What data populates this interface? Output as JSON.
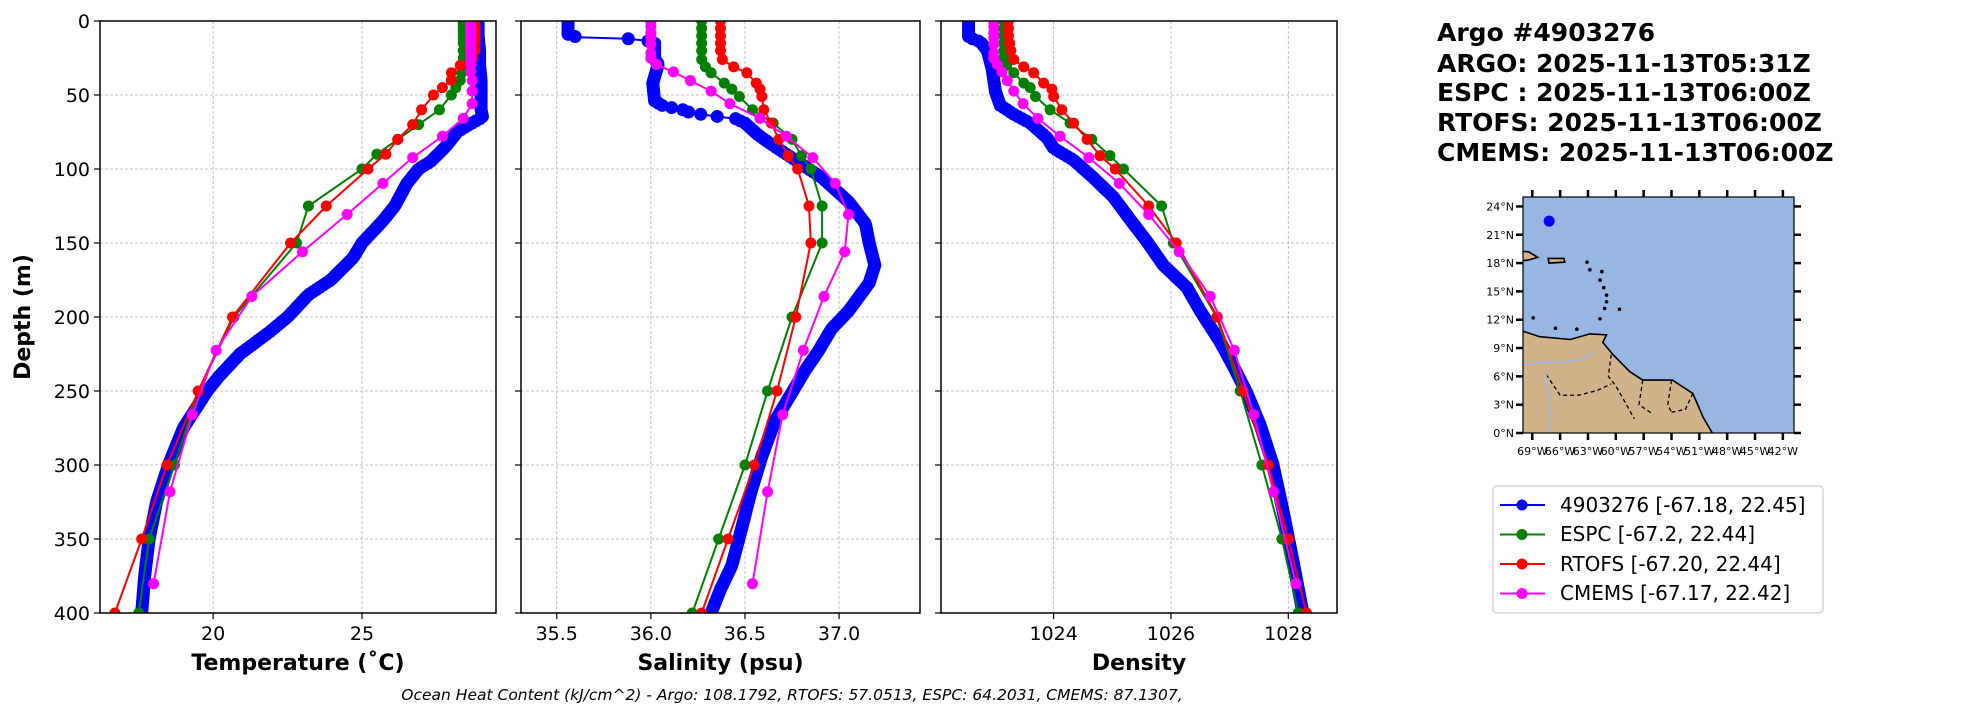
{
  "header": {
    "lines": [
      "Argo #4903276",
      "ARGO: 2025-11-13T05:31Z",
      "ESPC : 2025-11-13T06:00Z",
      "RTOFS: 2025-11-13T06:00Z",
      "CMEMS: 2025-11-13T06:00Z"
    ]
  },
  "legend": [
    {
      "label": "4903276 [-67.18, 22.45]",
      "color": "#0000ff"
    },
    {
      "label": "ESPC [-67.2, 22.44]",
      "color": "#008000"
    },
    {
      "label": "RTOFS [-67.20, 22.44]",
      "color": "#ff0000"
    },
    {
      "label": "CMEMS [-67.17, 22.42]",
      "color": "#ff00ff"
    }
  ],
  "footer": "Ocean Heat Content (kJ/cm^2) - Argo: 108.1792,  RTOFS: 57.0513,  ESPC: 64.2031,  CMEMS: 87.1307,",
  "map": {
    "lon_range": [
      -70,
      -40.8
    ],
    "lat_range": [
      0,
      25
    ],
    "ocean_color": "#97b6e1",
    "land_color": "#d0b38b",
    "float_position": {
      "lon": -67.18,
      "lat": 22.45,
      "color": "#0000ff"
    },
    "lat_ticks": [
      0,
      3,
      6,
      9,
      12,
      15,
      18,
      21,
      24
    ],
    "lat_tick_labels": [
      "0°N",
      "3°N",
      "6°N",
      "9°N",
      "12°N",
      "15°N",
      "18°N",
      "21°N",
      "24°N"
    ],
    "lon_ticks": [
      -69,
      -66,
      -63,
      -60,
      -57,
      -54,
      -51,
      -48,
      -45,
      -42
    ],
    "lon_tick_labels": [
      "69°W",
      "66°W",
      "63°W",
      "60°W",
      "57°W",
      "54°W",
      "51°W",
      "48°W",
      "45°W",
      "42°W"
    ]
  },
  "chart_data": [
    {
      "type": "line",
      "title": "",
      "xlabel": "Temperature (˚C)",
      "ylabel": "Depth (m)",
      "xlim": [
        16.2,
        29.5
      ],
      "ylim": [
        400,
        0
      ],
      "grid": true,
      "xticks": [
        20,
        25
      ],
      "xtick_labels": [
        "20",
        "25"
      ],
      "yticks": [
        0,
        50,
        100,
        150,
        200,
        250,
        300,
        350,
        400
      ],
      "ytick_labels": [
        "0",
        "50",
        "100",
        "150",
        "200",
        "250",
        "300",
        "350",
        "400"
      ],
      "series": [
        {
          "name": "4903276",
          "color": "#0000ff",
          "depth": [
            0,
            10,
            20,
            30,
            40,
            50,
            60,
            65,
            70,
            75,
            85,
            95,
            100,
            110,
            125,
            135,
            150,
            160,
            175,
            185,
            200,
            210,
            225,
            240,
            250,
            275,
            300,
            325,
            350,
            375,
            400
          ],
          "values": [
            28.9,
            28.9,
            28.95,
            28.95,
            29.0,
            29.0,
            29.0,
            29.05,
            28.6,
            28.2,
            27.8,
            27.3,
            26.9,
            26.5,
            26.1,
            25.7,
            25.0,
            24.7,
            23.95,
            23.2,
            22.5,
            21.9,
            20.9,
            20.2,
            19.8,
            19.0,
            18.5,
            18.1,
            17.85,
            17.7,
            17.6
          ]
        },
        {
          "name": "ESPC",
          "color": "#008000",
          "depth": [
            0,
            2,
            4,
            6,
            8,
            10,
            12,
            15,
            20,
            25,
            30,
            35,
            40,
            45,
            50,
            60,
            70,
            80,
            90,
            100,
            125,
            150,
            200,
            250,
            300,
            350,
            400
          ],
          "values": [
            28.4,
            28.4,
            28.4,
            28.4,
            28.4,
            28.4,
            28.4,
            28.4,
            28.4,
            28.4,
            28.4,
            28.35,
            28.3,
            28.15,
            28.0,
            27.6,
            26.9,
            26.2,
            25.5,
            25.0,
            23.2,
            22.8,
            20.7,
            19.5,
            18.7,
            17.85,
            17.5
          ]
        },
        {
          "name": "RTOFS",
          "color": "#ff0000",
          "depth": [
            0,
            2,
            4,
            6,
            8,
            10,
            12,
            15,
            20,
            25,
            30,
            35,
            40,
            45,
            50,
            60,
            70,
            80,
            90,
            100,
            125,
            150,
            200,
            250,
            300,
            350,
            400
          ],
          "values": [
            28.8,
            28.8,
            28.8,
            28.8,
            28.8,
            28.8,
            28.8,
            28.8,
            28.8,
            28.7,
            28.3,
            28.0,
            28.0,
            27.7,
            27.4,
            27.0,
            26.7,
            26.2,
            25.8,
            25.2,
            23.8,
            22.6,
            20.65,
            19.5,
            18.45,
            17.6,
            16.7
          ]
        },
        {
          "name": "CMEMS",
          "color": "#ff00ff",
          "depth": [
            0.5,
            1.5,
            2.6,
            3.8,
            5,
            6.4,
            7.9,
            9.6,
            11.4,
            13.5,
            15.8,
            18.5,
            21.6,
            25.2,
            29.4,
            34.4,
            40.3,
            47.4,
            55.8,
            65.8,
            77.9,
            92.3,
            109.7,
            130.7,
            155.9,
            186.1,
            222.5,
            266.0,
            318.1,
            380.2
          ],
          "values": [
            28.65,
            28.65,
            28.65,
            28.65,
            28.65,
            28.65,
            28.65,
            28.65,
            28.65,
            28.65,
            28.65,
            28.65,
            28.65,
            28.65,
            28.65,
            28.65,
            28.7,
            28.7,
            28.7,
            28.4,
            27.7,
            26.7,
            25.7,
            24.5,
            23.0,
            21.3,
            20.1,
            19.3,
            18.55,
            18.0
          ]
        }
      ]
    },
    {
      "type": "line",
      "title": "",
      "xlabel": "Salinity (psu)",
      "ylabel": "",
      "xlim": [
        35.31,
        37.43
      ],
      "ylim": [
        400,
        0
      ],
      "grid": true,
      "xticks": [
        35.5,
        36.0,
        36.5,
        37.0
      ],
      "xtick_labels": [
        "35.5",
        "36.0",
        "36.5",
        "37.0"
      ],
      "yticks": [
        0,
        50,
        100,
        150,
        200,
        250,
        300,
        350,
        400
      ],
      "series": [
        {
          "name": "4903276",
          "color": "#0000ff",
          "depth": [
            0,
            9,
            11,
            12,
            14,
            26,
            29,
            42,
            54,
            57,
            58.5,
            60,
            62,
            64,
            66,
            69,
            77,
            85,
            95,
            106,
            122,
            137,
            150,
            165,
            177,
            196,
            208,
            223,
            236,
            251,
            270,
            294,
            319,
            344,
            368,
            384,
            400
          ],
          "values": [
            35.56,
            35.56,
            35.61,
            35.88,
            36.02,
            36.02,
            36.04,
            36.01,
            36.02,
            36.06,
            36.11,
            36.17,
            36.21,
            36.32,
            36.45,
            36.5,
            36.57,
            36.66,
            36.78,
            36.91,
            37.05,
            37.14,
            37.16,
            37.19,
            37.16,
            37.05,
            36.96,
            36.89,
            36.82,
            36.75,
            36.66,
            36.59,
            36.53,
            36.48,
            36.43,
            36.37,
            36.32
          ]
        },
        {
          "name": "ESPC",
          "color": "#008000",
          "depth": [
            0,
            5,
            10,
            15,
            20,
            26,
            31,
            35,
            42,
            46,
            51,
            60,
            69,
            80,
            91,
            100,
            125,
            150,
            200,
            250,
            300,
            350,
            400
          ],
          "values": [
            36.27,
            36.27,
            36.27,
            36.27,
            36.27,
            36.27,
            36.29,
            36.32,
            36.39,
            36.43,
            36.47,
            36.54,
            36.65,
            36.75,
            36.8,
            36.85,
            36.91,
            36.91,
            36.75,
            36.62,
            36.5,
            36.36,
            36.22
          ]
        },
        {
          "name": "RTOFS",
          "color": "#ff0000",
          "depth": [
            0,
            5,
            10,
            15,
            20,
            26,
            31,
            35,
            42,
            46,
            51,
            60,
            69,
            80,
            91,
            100,
            125,
            150,
            200,
            250,
            300,
            350,
            400
          ],
          "values": [
            36.37,
            36.37,
            36.37,
            36.37,
            36.37,
            36.38,
            36.44,
            36.51,
            36.56,
            36.58,
            36.59,
            36.6,
            36.64,
            36.68,
            36.73,
            36.78,
            36.84,
            36.85,
            36.77,
            36.67,
            36.55,
            36.41,
            36.27
          ]
        },
        {
          "name": "CMEMS",
          "color": "#ff00ff",
          "depth": [
            0.5,
            3.8,
            7.9,
            11.4,
            15.8,
            21.6,
            25.2,
            29.4,
            34.4,
            40.3,
            47.4,
            55.8,
            65.8,
            77.9,
            92.3,
            109.7,
            130.7,
            155.9,
            186.1,
            222.5,
            266.0,
            318.1,
            380.2
          ],
          "values": [
            36.0,
            36.0,
            36.0,
            36.0,
            36.0,
            36.0,
            36.0,
            36.03,
            36.12,
            36.21,
            36.32,
            36.42,
            36.58,
            36.72,
            36.86,
            36.98,
            37.05,
            37.03,
            36.92,
            36.81,
            36.7,
            36.62,
            36.54
          ]
        }
      ]
    },
    {
      "type": "line",
      "title": "",
      "xlabel": "Density",
      "ylabel": "",
      "xlim": [
        1022.08,
        1028.83
      ],
      "ylim": [
        400,
        0
      ],
      "grid": true,
      "xticks": [
        1024,
        1026,
        1028
      ],
      "xtick_labels": [
        "1024",
        "1026",
        "1028"
      ],
      "yticks": [
        0,
        50,
        100,
        150,
        200,
        250,
        300,
        350,
        400
      ],
      "series": [
        {
          "name": "4903276",
          "color": "#0000ff",
          "depth": [
            0,
            11,
            14,
            20,
            32,
            48,
            57,
            63,
            69,
            79,
            86,
            94,
            106,
            119,
            134,
            149,
            165,
            180,
            196,
            217,
            233,
            251,
            273,
            300,
            331,
            365,
            400
          ],
          "values": [
            1022.55,
            1022.55,
            1022.75,
            1022.87,
            1022.95,
            1023.01,
            1023.09,
            1023.32,
            1023.6,
            1023.89,
            1024.0,
            1024.34,
            1024.68,
            1025.02,
            1025.3,
            1025.59,
            1025.87,
            1026.27,
            1026.5,
            1026.84,
            1027.06,
            1027.29,
            1027.52,
            1027.74,
            1027.91,
            1028.08,
            1028.25
          ]
        },
        {
          "name": "ESPC",
          "color": "#008000",
          "depth": [
            0,
            5,
            10,
            15,
            20,
            25,
            30,
            35,
            42,
            45,
            51,
            60,
            69,
            80,
            91,
            100,
            125,
            150,
            200,
            250,
            300,
            350,
            400
          ],
          "values": [
            1023.15,
            1023.15,
            1023.15,
            1023.15,
            1023.15,
            1023.15,
            1023.2,
            1023.32,
            1023.49,
            1023.6,
            1023.69,
            1023.94,
            1024.28,
            1024.65,
            1024.96,
            1025.19,
            1025.84,
            1026.04,
            1026.78,
            1027.18,
            1027.55,
            1027.89,
            1028.17
          ]
        },
        {
          "name": "RTOFS",
          "color": "#ff0000",
          "depth": [
            0,
            5,
            10,
            15,
            20,
            26,
            31,
            35,
            42,
            46,
            51,
            60,
            69,
            80,
            91,
            100,
            125,
            150,
            200,
            250,
            300,
            350,
            400
          ],
          "values": [
            1023.23,
            1023.23,
            1023.23,
            1023.25,
            1023.27,
            1023.32,
            1023.49,
            1023.66,
            1023.83,
            1023.97,
            1024.0,
            1024.14,
            1024.34,
            1024.57,
            1024.79,
            1025.05,
            1025.62,
            1026.09,
            1026.79,
            1027.23,
            1027.66,
            1028.0,
            1028.31
          ]
        },
        {
          "name": "CMEMS",
          "color": "#ff00ff",
          "depth": [
            0.5,
            3.8,
            7.9,
            11.4,
            15.8,
            21.6,
            25.2,
            29.4,
            34.4,
            40.3,
            47.4,
            55.8,
            65.8,
            77.9,
            92.3,
            109.7,
            130.7,
            155.9,
            186.1,
            222.5,
            266.0,
            318.1,
            380.2
          ],
          "values": [
            1022.98,
            1022.98,
            1022.98,
            1022.98,
            1022.98,
            1022.98,
            1022.98,
            1023.04,
            1023.12,
            1023.21,
            1023.32,
            1023.48,
            1023.73,
            1024.11,
            1024.6,
            1025.12,
            1025.62,
            1026.14,
            1026.67,
            1027.08,
            1027.41,
            1027.75,
            1028.13
          ]
        }
      ]
    }
  ]
}
